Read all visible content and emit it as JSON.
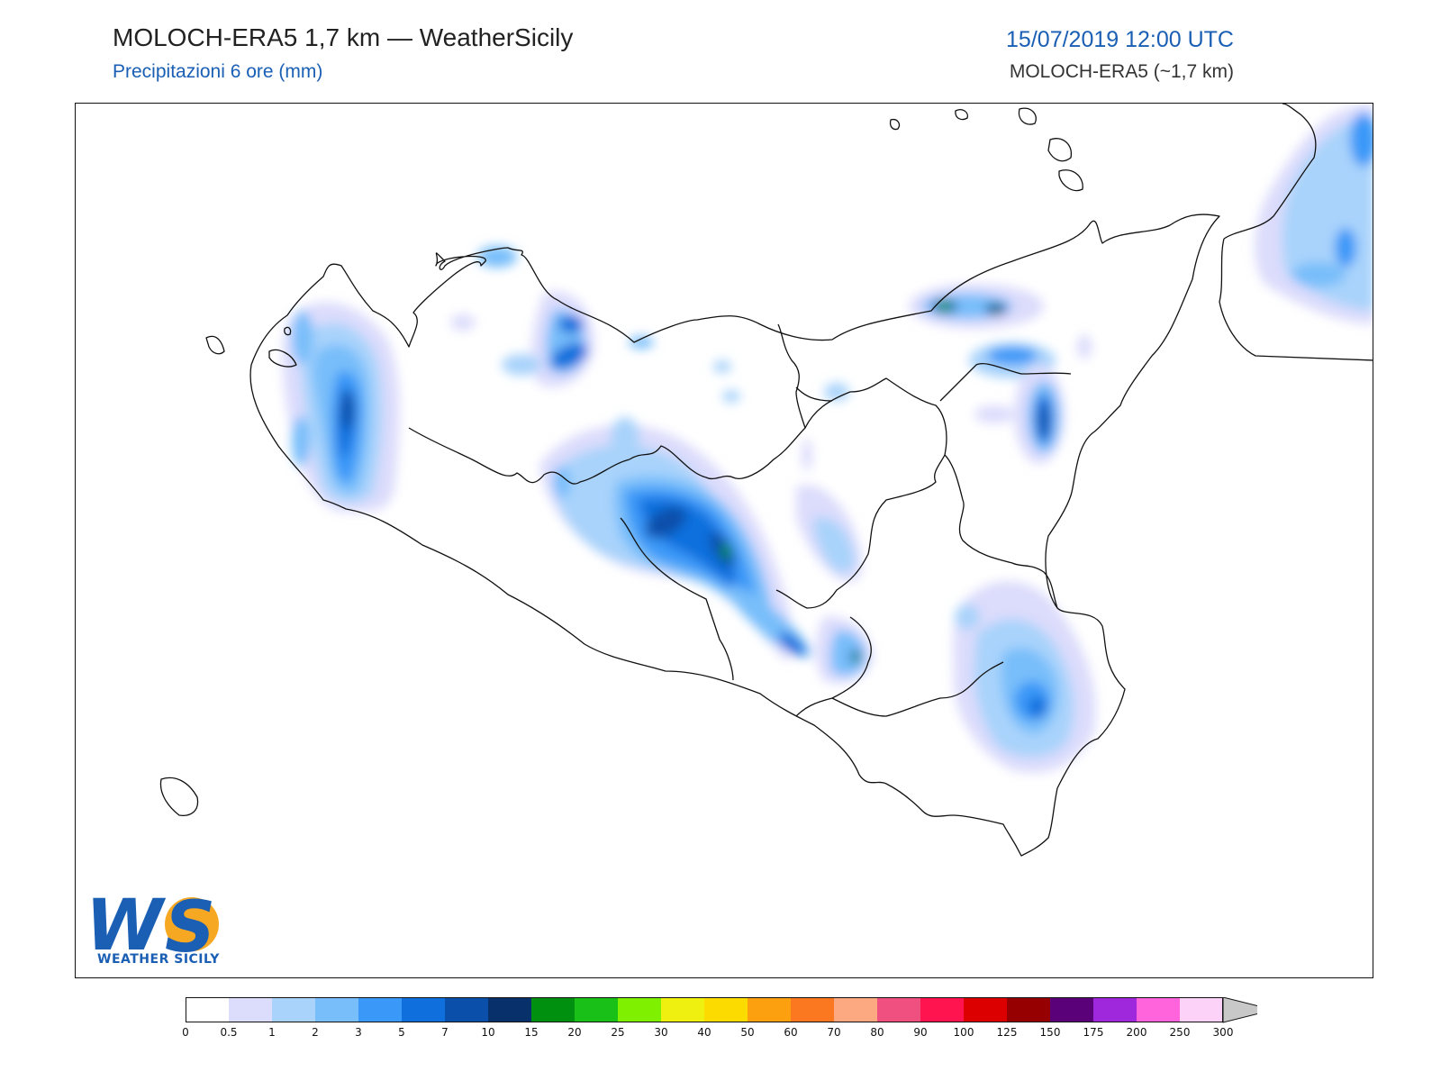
{
  "header": {
    "title": "MOLOCH-ERA5 1,7 km — WeatherSicily",
    "subtitle": "Precipitazioni 6 ore (mm)",
    "datetime": "15/07/2019 12:00 UTC",
    "model_label": "MOLOCH-ERA5 (~1,7 km)"
  },
  "logo": {
    "mark": "WS",
    "text": "WEATHER SICILY"
  },
  "colorbar": {
    "ticks": [
      "0",
      "0.5",
      "1",
      "2",
      "3",
      "5",
      "7",
      "10",
      "15",
      "20",
      "25",
      "30",
      "40",
      "50",
      "60",
      "70",
      "80",
      "90",
      "100",
      "125",
      "150",
      "175",
      "200",
      "250",
      "300"
    ],
    "colors": [
      "#ffffff",
      "#dcdcfc",
      "#a9d3fb",
      "#78befa",
      "#3a98f8",
      "#0f70dd",
      "#0a4faa",
      "#08306b",
      "#009010",
      "#18c018",
      "#7ef000",
      "#f0f010",
      "#fcdc00",
      "#fca010",
      "#fc7820",
      "#fca880",
      "#f05080",
      "#ff1450",
      "#dc0000",
      "#960000",
      "#5a0078",
      "#a028dc",
      "#ff64dc",
      "#fcd2f8"
    ],
    "overflow_color": "#c8c8c8"
  },
  "map": {
    "colors": {
      "c05": "#dcdcfc",
      "c1": "#a9d3fb",
      "c2": "#78befa",
      "c3": "#3a98f8",
      "c5": "#0f70dd",
      "c7": "#0a4faa",
      "c10": "#08306b",
      "c15": "#009010",
      "c20": "#18c018"
    }
  }
}
